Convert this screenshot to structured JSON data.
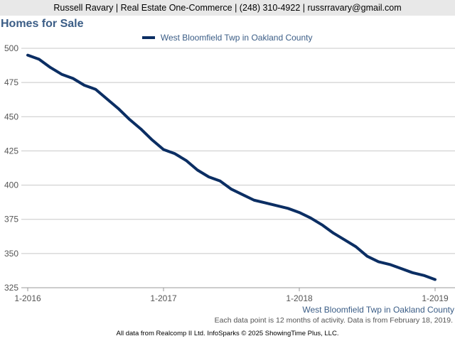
{
  "header": {
    "contact": "Russell Ravary | Real Estate One-Commerce | (248) 310-4922 | russrravary@gmail.com"
  },
  "chart_data": {
    "type": "line",
    "title": "Homes for Sale",
    "xlabel": "",
    "ylabel": "",
    "ylim": [
      325,
      500
    ],
    "yticks": [
      325,
      350,
      375,
      400,
      425,
      450,
      475,
      500
    ],
    "xticks": [
      "1-2016",
      "1-2017",
      "1-2018",
      "1-2019"
    ],
    "x_index_range": [
      0,
      36
    ],
    "grid": true,
    "legend_position": "top",
    "series": [
      {
        "name": "West Bloomfield Twp in Oakland County",
        "color": "#0b2e63",
        "x": [
          0,
          1,
          2,
          3,
          4,
          5,
          6,
          7,
          8,
          9,
          10,
          11,
          12,
          13,
          14,
          15,
          16,
          17,
          18,
          19,
          20,
          21,
          22,
          23,
          24,
          25,
          26,
          27,
          28,
          29,
          30,
          31,
          32,
          33,
          34,
          35,
          36
        ],
        "values": [
          495,
          492,
          486,
          481,
          478,
          473,
          470,
          463,
          456,
          448,
          441,
          433,
          426,
          423,
          418,
          411,
          406,
          403,
          397,
          393,
          389,
          387,
          385,
          383,
          380,
          376,
          371,
          365,
          360,
          355,
          348,
          344,
          342,
          339,
          336,
          334,
          331
        ]
      }
    ]
  },
  "bottom_series_label": "West Bloomfield Twp in Oakland County",
  "note": "Each data point is 12 months of activity. Data is from February 18, 2019.",
  "footer": "All data from Realcomp II Ltd. InfoSparks © 2025 ShowingTime Plus, LLC."
}
